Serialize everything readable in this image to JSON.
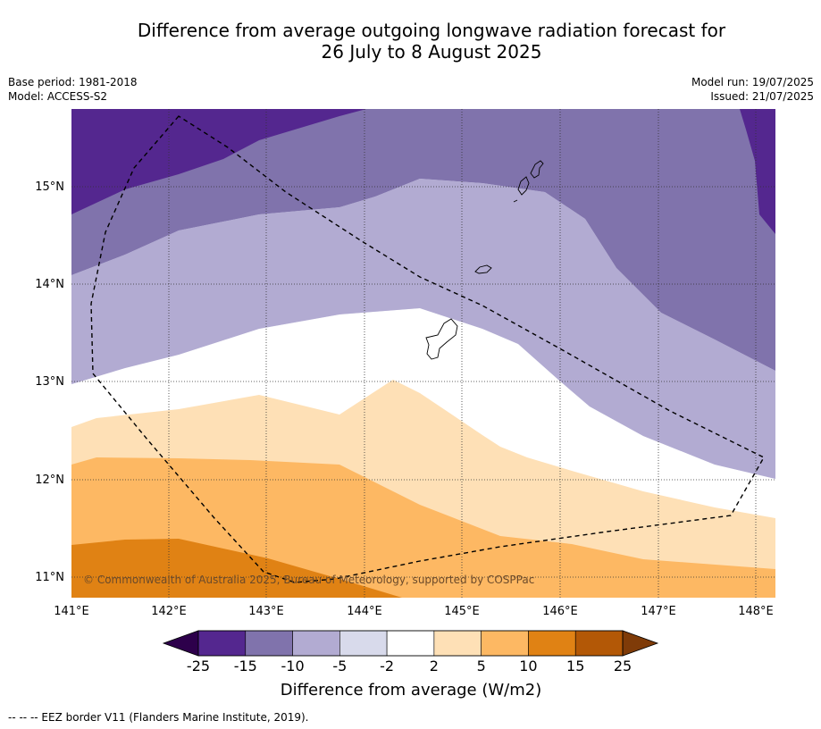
{
  "title_line1": "Difference from average outgoing longwave radiation forecast for",
  "title_line2": "26 July to 8 August 2025",
  "base_period": "Base period: 1981-2018",
  "model": "Model: ACCESS-S2",
  "model_run": "Model run: 19/07/2025",
  "issued": "Issued: 21/07/2025",
  "copyright": "© Commonwealth of Australia 2025, Bureau of Meteorology, supported by COSPPac",
  "x_ticks": [
    "141°E",
    "142°E",
    "143°E",
    "144°E",
    "145°E",
    "146°E",
    "147°E",
    "148°E"
  ],
  "y_ticks": [
    "15°N",
    "14°N",
    "13°N",
    "12°N",
    "11°N"
  ],
  "colorbar": {
    "title": "Difference from average (W/m2)",
    "labels": [
      "-25",
      "-15",
      "-10",
      "-5",
      "-2",
      "2",
      "5",
      "10",
      "15",
      "25"
    ],
    "colors": [
      "#54278f",
      "#8073ac",
      "#b2abd2",
      "#d8daeb",
      "#ffffff",
      "#fee0b6",
      "#fdb863",
      "#e08214",
      "#b35806"
    ],
    "under_color": "#2d004b",
    "over_color": "#7f3b08"
  },
  "footer": "--  --  -- EEZ border V11 (Flanders Marine Institute, 2019)."
}
